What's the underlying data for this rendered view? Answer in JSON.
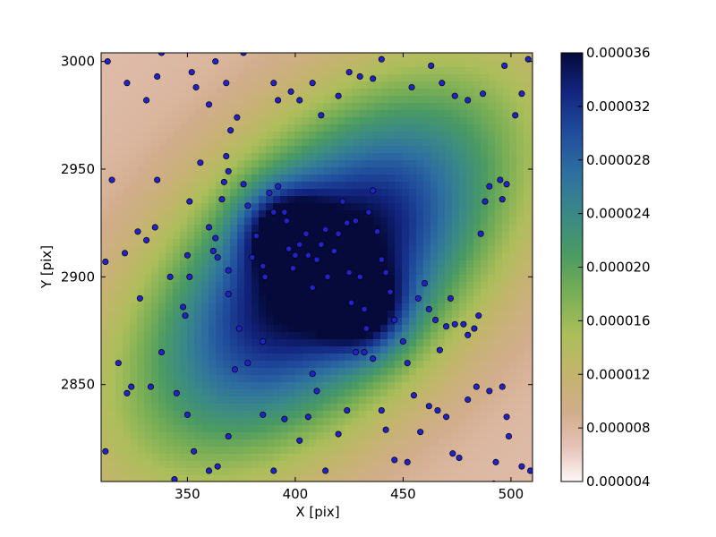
{
  "chart_data": {
    "type": "heatmap",
    "title": "",
    "xlabel": "X [pix]",
    "ylabel": "Y [pix]",
    "xlim": [
      310,
      510
    ],
    "ylim": [
      2805,
      3004
    ],
    "x_ticks": [
      350,
      400,
      450,
      500
    ],
    "y_ticks": [
      2850,
      2900,
      2950,
      3000
    ],
    "grid": false,
    "colormap": "gist_earth_r",
    "colorbar": {
      "range": [
        4e-06,
        3.6e-05
      ],
      "ticks": [
        4e-06,
        8e-06,
        1.2e-05,
        1.6e-05,
        2e-05,
        2.4e-05,
        2.8e-05,
        3.2e-05,
        3.6e-05
      ],
      "tick_labels": [
        "0.000004",
        "0.000008",
        "0.000012",
        "0.000016",
        "0.000020",
        "0.000024",
        "0.000028",
        "0.000032",
        "0.000036"
      ]
    },
    "density_peaks": [
      {
        "x": 395,
        "y": 2922,
        "value": 3.6e-05
      },
      {
        "x": 432,
        "y": 2884,
        "value": 3.6e-05
      }
    ],
    "marker_color": "#2222cc",
    "points": [
      [
        313,
        3000
      ],
      [
        322,
        2990
      ],
      [
        331,
        2982
      ],
      [
        336,
        2993
      ],
      [
        338,
        3004
      ],
      [
        352,
        2995
      ],
      [
        354,
        2988
      ],
      [
        360,
        2980
      ],
      [
        363,
        3000
      ],
      [
        368,
        2990
      ],
      [
        376,
        3004
      ],
      [
        390,
        2990
      ],
      [
        392,
        2982
      ],
      [
        398,
        2986
      ],
      [
        402,
        2982
      ],
      [
        408,
        2990
      ],
      [
        412,
        2975
      ],
      [
        420,
        2984
      ],
      [
        425,
        2995
      ],
      [
        430,
        2993
      ],
      [
        436,
        2992
      ],
      [
        440,
        3001
      ],
      [
        454,
        2988
      ],
      [
        463,
        2998
      ],
      [
        468,
        2990
      ],
      [
        474,
        2984
      ],
      [
        480,
        2982
      ],
      [
        487,
        2985
      ],
      [
        497,
        2998
      ],
      [
        505,
        2985
      ],
      [
        508,
        3001
      ],
      [
        502,
        2975
      ],
      [
        315,
        2945
      ],
      [
        312,
        2907
      ],
      [
        321,
        2911
      ],
      [
        327,
        2921
      ],
      [
        331,
        2917
      ],
      [
        335,
        2923
      ],
      [
        336,
        2945
      ],
      [
        342,
        2900
      ],
      [
        348,
        2886
      ],
      [
        349,
        2882
      ],
      [
        350,
        2910
      ],
      [
        351,
        2900
      ],
      [
        351,
        2935
      ],
      [
        356,
        2953
      ],
      [
        360,
        2923
      ],
      [
        362,
        2912
      ],
      [
        363,
        2918
      ],
      [
        364,
        2909
      ],
      [
        366,
        2936
      ],
      [
        367,
        2944
      ],
      [
        369,
        2903
      ],
      [
        369,
        2892
      ],
      [
        368,
        2956
      ],
      [
        369,
        2949
      ],
      [
        370,
        2968
      ],
      [
        373,
        2974
      ],
      [
        374,
        2876
      ],
      [
        376,
        2943
      ],
      [
        378,
        2933
      ],
      [
        380,
        2909
      ],
      [
        382,
        2919
      ],
      [
        385,
        2905
      ],
      [
        385,
        2870
      ],
      [
        386,
        2900
      ],
      [
        388,
        2939
      ],
      [
        390,
        2930
      ],
      [
        392,
        2942
      ],
      [
        395,
        2930
      ],
      [
        396,
        2926
      ],
      [
        397,
        2913
      ],
      [
        399,
        2904
      ],
      [
        400,
        2910
      ],
      [
        402,
        2915
      ],
      [
        405,
        2920
      ],
      [
        406,
        2910
      ],
      [
        408,
        2895
      ],
      [
        410,
        2908
      ],
      [
        412,
        2915
      ],
      [
        414,
        2922
      ],
      [
        415,
        2900
      ],
      [
        418,
        2912
      ],
      [
        420,
        2920
      ],
      [
        422,
        2935
      ],
      [
        424,
        2925
      ],
      [
        425,
        2902
      ],
      [
        426,
        2888
      ],
      [
        428,
        2926
      ],
      [
        430,
        2900
      ],
      [
        432,
        2885
      ],
      [
        433,
        2876
      ],
      [
        434,
        2930
      ],
      [
        436,
        2940
      ],
      [
        438,
        2921
      ],
      [
        440,
        2908
      ],
      [
        442,
        2902
      ],
      [
        444,
        2893
      ],
      [
        446,
        2880
      ],
      [
        450,
        2870
      ],
      [
        452,
        2860
      ],
      [
        455,
        2845
      ],
      [
        457,
        2890
      ],
      [
        460,
        2897
      ],
      [
        462,
        2885
      ],
      [
        465,
        2880
      ],
      [
        467,
        2866
      ],
      [
        470,
        2877
      ],
      [
        472,
        2890
      ],
      [
        474,
        2878
      ],
      [
        478,
        2878
      ],
      [
        480,
        2873
      ],
      [
        483,
        2876
      ],
      [
        485,
        2882
      ],
      [
        486,
        2920
      ],
      [
        488,
        2935
      ],
      [
        490,
        2942
      ],
      [
        495,
        2945
      ],
      [
        496,
        2936
      ],
      [
        498,
        2943
      ],
      [
        318,
        2860
      ],
      [
        322,
        2846
      ],
      [
        324,
        2849
      ],
      [
        328,
        2890
      ],
      [
        333,
        2849
      ],
      [
        338,
        2865
      ],
      [
        345,
        2846
      ],
      [
        350,
        2836
      ],
      [
        353,
        2819
      ],
      [
        360,
        2810
      ],
      [
        364,
        2812
      ],
      [
        369,
        2826
      ],
      [
        372,
        2857
      ],
      [
        378,
        2860
      ],
      [
        385,
        2836
      ],
      [
        390,
        2810
      ],
      [
        395,
        2834
      ],
      [
        402,
        2824
      ],
      [
        406,
        2835
      ],
      [
        408,
        2855
      ],
      [
        410,
        2847
      ],
      [
        414,
        2810
      ],
      [
        420,
        2827
      ],
      [
        424,
        2838
      ],
      [
        428,
        2865
      ],
      [
        432,
        2865
      ],
      [
        436,
        2862
      ],
      [
        440,
        2838
      ],
      [
        442,
        2829
      ],
      [
        446,
        2815
      ],
      [
        452,
        2814
      ],
      [
        458,
        2828
      ],
      [
        462,
        2840
      ],
      [
        466,
        2838
      ],
      [
        470,
        2835
      ],
      [
        473,
        2818
      ],
      [
        476,
        2816
      ],
      [
        480,
        2843
      ],
      [
        484,
        2849
      ],
      [
        490,
        2847
      ],
      [
        493,
        2814
      ],
      [
        496,
        2849
      ],
      [
        498,
        2835
      ],
      [
        499,
        2826
      ],
      [
        505,
        2812
      ],
      [
        509,
        2810
      ],
      [
        492,
        2804
      ],
      [
        344,
        2806
      ],
      [
        312,
        2819
      ]
    ]
  }
}
